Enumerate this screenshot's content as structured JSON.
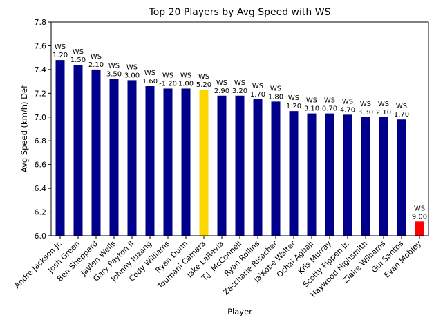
{
  "chart_data": {
    "type": "bar",
    "title": "Top 20 Players by Avg Speed with WS",
    "xlabel": "Player",
    "ylabel": "Avg Speed (km/h) Def",
    "ylim": [
      6.0,
      7.8
    ],
    "yticks": [
      "6.0",
      "6.2",
      "6.4",
      "6.6",
      "6.8",
      "7.0",
      "7.2",
      "7.4",
      "7.6",
      "7.8"
    ],
    "grid": false,
    "annotation_prefix": "WS",
    "categories": [
      "Andre Jackson Jr.",
      "Josh Green",
      "Ben Sheppard",
      "Jaylen Wells",
      "Gary Payton II",
      "Johnny Juzang",
      "Cody Williams",
      "Ryan Dunn",
      "Toumani Camara",
      "Jake LaRavia",
      "T.J. McConnell",
      "Ryan Rollins",
      "Zaccharie Risacher",
      "Ja'Kobe Walter",
      "Ochai Agbaji",
      "Kris Murray",
      "Scotty Pippen Jr.",
      "Haywood Highsmith",
      "Ziaire Williams",
      "Gui Santos",
      "Evan Mobley"
    ],
    "values": [
      7.48,
      7.44,
      7.4,
      7.32,
      7.31,
      7.26,
      7.24,
      7.24,
      7.23,
      7.18,
      7.18,
      7.15,
      7.13,
      7.05,
      7.03,
      7.03,
      7.02,
      7.0,
      7.0,
      6.98,
      6.12
    ],
    "ws": [
      "1.20",
      "1.50",
      "2.10",
      "3.50",
      "3.00",
      "1.60",
      "-1.20",
      "1.00",
      "5.20",
      "2.90",
      "3.20",
      "1.70",
      "1.80",
      "1.20",
      "3.10",
      "0.70",
      "4.70",
      "3.30",
      "2.10",
      "1.70",
      "9.00"
    ],
    "colors": [
      "#00008b",
      "#00008b",
      "#00008b",
      "#00008b",
      "#00008b",
      "#00008b",
      "#00008b",
      "#00008b",
      "#ffd700",
      "#00008b",
      "#00008b",
      "#00008b",
      "#00008b",
      "#00008b",
      "#00008b",
      "#00008b",
      "#00008b",
      "#00008b",
      "#00008b",
      "#00008b",
      "#ff0000"
    ]
  }
}
